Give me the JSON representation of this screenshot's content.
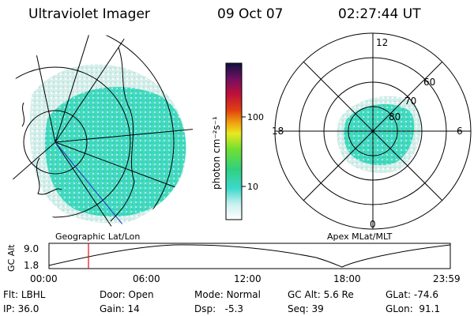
{
  "header": {
    "instrument": "Ultraviolet Imager",
    "date": "09 Oct 07",
    "time": "02:27:44 UT"
  },
  "colorbar": {
    "label": "photon cm⁻²s⁻¹",
    "ticks": [
      "100",
      "10"
    ]
  },
  "map_left": {
    "caption": "Geographic Lat/Lon"
  },
  "map_right": {
    "caption": "Apex MLat/MLT",
    "mlt_labels": {
      "top": "12",
      "left": "18",
      "right": "6",
      "bottom": "0"
    },
    "lat_labels": [
      "60",
      "70",
      "80"
    ]
  },
  "altitude_plot": {
    "axis_label": "GC Alt",
    "y_ticks": [
      "9.0",
      "1.8"
    ],
    "x_ticks": [
      "00:00",
      "06:00",
      "12:00",
      "18:00",
      "23:59"
    ]
  },
  "status": {
    "row1": [
      {
        "key": "Flt:",
        "value": "LBHL"
      },
      {
        "key": "Door:",
        "value": "Open"
      },
      {
        "key": "Mode:",
        "value": "Normal"
      },
      {
        "key": "GC Alt:",
        "value": "5.6 Re"
      },
      {
        "key": "GLat:",
        "value": "-74.6"
      }
    ],
    "row2": [
      {
        "key": "IP:",
        "value": "36.0"
      },
      {
        "key": "Gain:",
        "value": "14"
      },
      {
        "key": "Dsp:",
        "value": "-5.3"
      },
      {
        "key": "Seq:",
        "value": "39"
      },
      {
        "key": "GLon:",
        "value": "91.1"
      }
    ]
  },
  "colors": {
    "aurora_main": "#3fd6c0",
    "aurora_green": "#36e07a",
    "aurora_pale": "#d7ece9",
    "marker_red": "#e01010"
  }
}
